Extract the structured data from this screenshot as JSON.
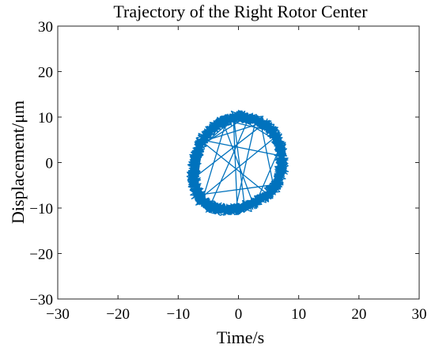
{
  "chart_data": {
    "type": "line",
    "title": "Trajectory of the Right Rotor Center",
    "xlabel": "Time/s",
    "ylabel": "Displacement/μm",
    "xlim": [
      -30,
      30
    ],
    "ylim": [
      -30,
      30
    ],
    "xticks": [
      -30,
      -20,
      -10,
      0,
      10,
      20,
      30
    ],
    "yticks": [
      -30,
      -20,
      -10,
      0,
      10,
      20,
      30
    ],
    "xtick_labels": [
      "−30",
      "−20",
      "−10",
      "0",
      "10",
      "20",
      "30"
    ],
    "ytick_labels": [
      "−30",
      "−20",
      "−10",
      "0",
      "10",
      "20",
      "30"
    ],
    "grid": false,
    "line_color": "#0072BD",
    "series": [
      {
        "x": [
          1.0,
          2.6,
          4.0,
          5.2,
          6.1,
          6.8,
          7.1,
          7.2,
          7.0,
          6.5,
          5.6,
          4.4,
          2.9,
          1.3,
          -0.4,
          -2.0,
          -3.6,
          -5.0,
          -6.2,
          -7.0,
          -7.4,
          -7.4,
          -7.1,
          -6.5,
          -5.6,
          -4.4,
          -3.0,
          -1.5,
          0.0,
          1.0
        ],
        "y": [
          10.0,
          9.5,
          8.6,
          7.3,
          5.7,
          3.8,
          1.8,
          -0.3,
          -2.4,
          -4.3,
          -6.0,
          -7.5,
          -8.7,
          -9.6,
          -10.2,
          -10.4,
          -10.1,
          -9.4,
          -8.1,
          -6.3,
          -4.1,
          -1.6,
          1.0,
          3.5,
          5.6,
          7.4,
          8.7,
          9.6,
          10.1,
          10.0
        ]
      }
    ]
  }
}
